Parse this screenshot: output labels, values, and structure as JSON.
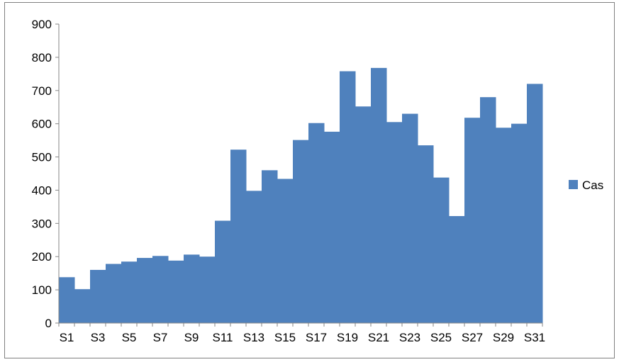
{
  "chart_data": {
    "type": "bar",
    "title": "",
    "xlabel": "",
    "ylabel": "",
    "categories": [
      "S1",
      "S2",
      "S3",
      "S4",
      "S5",
      "S6",
      "S7",
      "S8",
      "S9",
      "S10",
      "S11",
      "S12",
      "S13",
      "S14",
      "S15",
      "S16",
      "S17",
      "S18",
      "S19",
      "S20",
      "S21",
      "S22",
      "S23",
      "S24",
      "S25",
      "S26",
      "S27",
      "S28",
      "S29",
      "S30",
      "S31"
    ],
    "x_tick_labels": [
      "S1",
      "S3",
      "S5",
      "S7",
      "S9",
      "S11",
      "S13",
      "S15",
      "S17",
      "S19",
      "S21",
      "S23",
      "S25",
      "S27",
      "S29",
      "S31"
    ],
    "series": [
      {
        "name": "Cas",
        "color": "#4f81bd",
        "values": [
          138,
          102,
          160,
          178,
          185,
          196,
          202,
          188,
          206,
          200,
          308,
          522,
          398,
          460,
          434,
          551,
          602,
          576,
          758,
          652,
          768,
          605,
          630,
          535,
          438,
          322,
          618,
          680,
          588,
          600,
          720
        ]
      }
    ],
    "ylim": [
      0,
      900
    ],
    "y_ticks": [
      0,
      100,
      200,
      300,
      400,
      500,
      600,
      700,
      800,
      900
    ],
    "grid": false,
    "legend_position": "right",
    "bar_gap": 0
  }
}
